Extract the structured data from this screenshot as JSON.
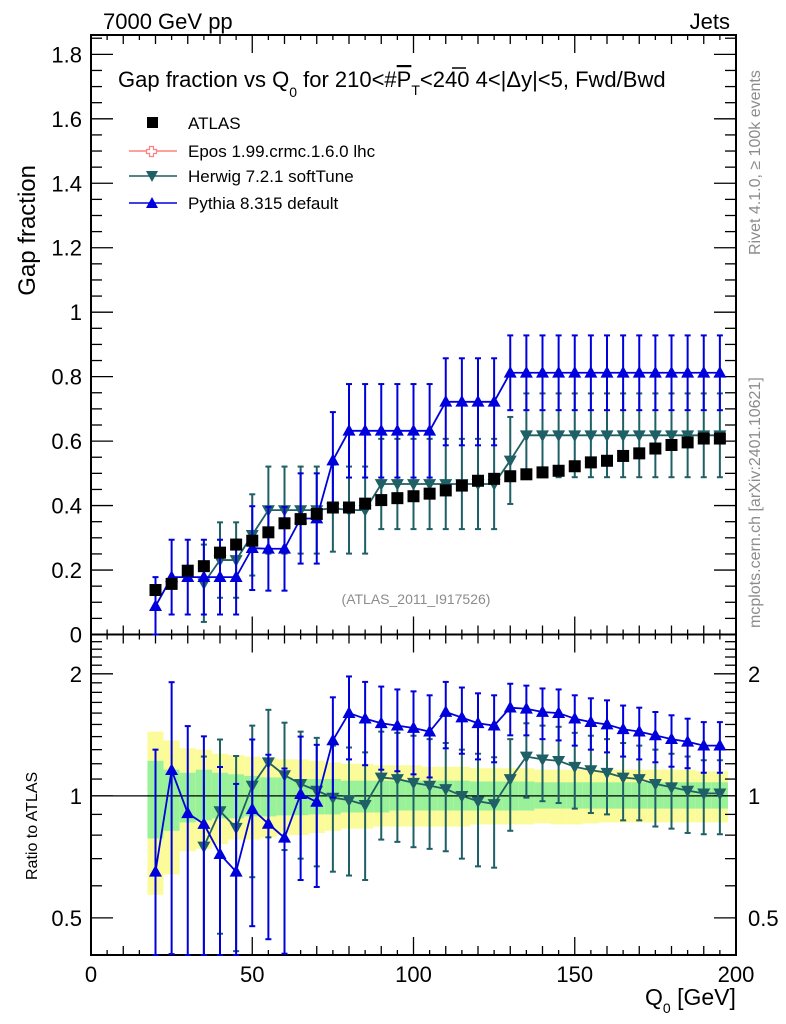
{
  "header": {
    "left": "7000 GeV pp",
    "right": "Jets"
  },
  "side_notes": {
    "rivet": "Rivet 4.1.0, ≥ 100k events",
    "mcplots": "mcplots.cern.ch [arXiv:2401.10621]"
  },
  "analysis_label": "(ATLAS_2011_I917526)",
  "colors": {
    "atlas": "#000000",
    "epos": "#ff8080",
    "herwig": "#1f5f66",
    "pythia": "#0000dd",
    "band_inner": "#99f299",
    "band_outer": "#fbfb99"
  },
  "chart_data": [
    {
      "type": "scatter",
      "panel": "main",
      "title": "Gap fraction vs Q_0 for 210<#P_T<240  4<|Δy|<5, Fwd/Bwd",
      "title_parts": {
        "a": "Gap fraction vs Q",
        "sub": "0",
        "b": " for 210<#",
        "p": "P",
        "psub": "T",
        "c": "<240  4<|Δy|<5, Fwd/Bwd"
      },
      "xlabel": "Q_0 [GeV]",
      "ylabel": "Gap fraction",
      "xlim": [
        0,
        200
      ],
      "ylim": [
        0,
        1.86
      ],
      "yticks": [
        0,
        0.2,
        0.4,
        0.6,
        0.8,
        1,
        1.2,
        1.4,
        1.6,
        1.8
      ],
      "ytick_labels": [
        "0",
        "0.2",
        "0.4",
        "0.6",
        "0.8",
        "1",
        "1.2",
        "1.4",
        "1.6",
        "1.8"
      ],
      "legend_position": "top-left",
      "x": [
        20,
        25,
        30,
        35,
        40,
        45,
        50,
        55,
        60,
        65,
        70,
        75,
        80,
        85,
        90,
        95,
        100,
        105,
        110,
        115,
        120,
        125,
        130,
        135,
        140,
        145,
        150,
        155,
        160,
        165,
        170,
        175,
        180,
        185,
        190,
        195
      ],
      "series": [
        {
          "name": "ATLAS",
          "marker": "square",
          "values": [
            0.138,
            0.157,
            0.198,
            0.212,
            0.254,
            0.279,
            0.291,
            0.317,
            0.345,
            0.358,
            0.374,
            0.394,
            0.394,
            0.406,
            0.417,
            0.423,
            0.429,
            0.437,
            0.447,
            0.462,
            0.477,
            0.483,
            0.491,
            0.497,
            0.503,
            0.508,
            0.522,
            0.534,
            0.539,
            0.554,
            0.562,
            0.577,
            0.588,
            0.596,
            0.608,
            0.608
          ]
        },
        {
          "name": "Epos 1.99.crmc.1.6.0 lhc",
          "marker": "open-cross",
          "values": []
        },
        {
          "name": "Herwig 7.2.1 softTune",
          "marker": "triangle-down",
          "x_start": 35,
          "values": [
            null,
            null,
            null,
            0.159,
            0.231,
            0.231,
            0.309,
            0.386,
            0.386,
            0.386,
            0.386,
            0.392,
            0.386,
            0.386,
            0.467,
            0.467,
            0.467,
            0.467,
            0.467,
            0.467,
            0.467,
            0.467,
            0.54,
            0.618,
            0.618,
            0.618,
            0.618,
            0.618,
            0.618,
            0.618,
            0.618,
            0.618,
            0.618,
            0.618,
            0.618,
            0.618
          ],
          "errors": [
            null,
            null,
            null,
            0.12,
            0.117,
            0.117,
            0.126,
            0.135,
            0.135,
            0.135,
            0.135,
            0.135,
            0.135,
            0.135,
            0.14,
            0.14,
            0.14,
            0.14,
            0.14,
            0.14,
            0.14,
            0.14,
            0.135,
            0.13,
            0.13,
            0.13,
            0.13,
            0.13,
            0.13,
            0.13,
            0.13,
            0.13,
            0.13,
            0.13,
            0.13,
            0.13
          ]
        },
        {
          "name": "Pythia 8.315 default",
          "marker": "triangle-up",
          "values": [
            0.088,
            0.178,
            0.178,
            0.178,
            0.178,
            0.178,
            0.268,
            0.266,
            0.266,
            0.36,
            0.36,
            0.54,
            0.632,
            0.632,
            0.632,
            0.632,
            0.632,
            0.632,
            0.722,
            0.722,
            0.722,
            0.722,
            0.812,
            0.812,
            0.812,
            0.812,
            0.812,
            0.812,
            0.812,
            0.812,
            0.812,
            0.812,
            0.812,
            0.812,
            0.812,
            0.812
          ],
          "errors": [
            0.09,
            0.116,
            0.116,
            0.116,
            0.116,
            0.116,
            0.13,
            0.13,
            0.13,
            0.14,
            0.14,
            0.15,
            0.145,
            0.145,
            0.145,
            0.145,
            0.145,
            0.145,
            0.135,
            0.135,
            0.135,
            0.135,
            0.116,
            0.116,
            0.116,
            0.116,
            0.116,
            0.116,
            0.116,
            0.116,
            0.116,
            0.116,
            0.116,
            0.116,
            0.116,
            0.116
          ]
        }
      ]
    },
    {
      "type": "scatter",
      "panel": "ratio",
      "ylabel": "Ratio to ATLAS",
      "yscale": "log",
      "xlim": [
        0,
        200
      ],
      "ylim": [
        0.405,
        2.5
      ],
      "yticks": [
        0.5,
        1,
        2
      ],
      "ytick_labels": [
        "0.5",
        "1",
        "2"
      ],
      "xticks": [
        0,
        50,
        100,
        150,
        200
      ],
      "xtick_labels": [
        "0",
        "50",
        "100",
        "150",
        "200"
      ],
      "x": [
        20,
        25,
        30,
        35,
        40,
        45,
        50,
        55,
        60,
        65,
        70,
        75,
        80,
        85,
        90,
        95,
        100,
        105,
        110,
        115,
        120,
        125,
        130,
        135,
        140,
        145,
        150,
        155,
        160,
        165,
        170,
        175,
        180,
        185,
        190,
        195
      ],
      "band_inner": [
        [
          0.785,
          1.22
        ],
        [
          0.82,
          1.16
        ],
        [
          0.86,
          1.14
        ],
        [
          0.87,
          1.16
        ],
        [
          0.88,
          1.14
        ],
        [
          0.88,
          1.13
        ],
        [
          0.89,
          1.12
        ],
        [
          0.89,
          1.11
        ],
        [
          0.895,
          1.11
        ],
        [
          0.896,
          1.1
        ],
        [
          0.9,
          1.1
        ],
        [
          0.9,
          1.1
        ],
        [
          0.91,
          1.09
        ],
        [
          0.91,
          1.09
        ],
        [
          0.91,
          1.09
        ],
        [
          0.92,
          1.09
        ],
        [
          0.92,
          1.09
        ],
        [
          0.92,
          1.09
        ],
        [
          0.92,
          1.09
        ],
        [
          0.92,
          1.09
        ],
        [
          0.92,
          1.085
        ],
        [
          0.92,
          1.085
        ],
        [
          0.92,
          1.085
        ],
        [
          0.92,
          1.085
        ],
        [
          0.93,
          1.08
        ],
        [
          0.93,
          1.08
        ],
        [
          0.93,
          1.08
        ],
        [
          0.93,
          1.08
        ],
        [
          0.93,
          1.08
        ],
        [
          0.93,
          1.08
        ],
        [
          0.93,
          1.08
        ],
        [
          0.93,
          1.08
        ],
        [
          0.93,
          1.08
        ],
        [
          0.93,
          1.08
        ],
        [
          0.93,
          1.08
        ],
        [
          0.93,
          1.08
        ]
      ],
      "band_outer": [
        [
          0.57,
          1.44
        ],
        [
          0.64,
          1.37
        ],
        [
          0.73,
          1.31
        ],
        [
          0.74,
          1.3
        ],
        [
          0.76,
          1.27
        ],
        [
          0.78,
          1.26
        ],
        [
          0.78,
          1.25
        ],
        [
          0.79,
          1.24
        ],
        [
          0.8,
          1.23
        ],
        [
          0.8,
          1.23
        ],
        [
          0.81,
          1.22
        ],
        [
          0.82,
          1.21
        ],
        [
          0.83,
          1.2
        ],
        [
          0.83,
          1.2
        ],
        [
          0.84,
          1.19
        ],
        [
          0.84,
          1.19
        ],
        [
          0.84,
          1.19
        ],
        [
          0.84,
          1.18
        ],
        [
          0.84,
          1.18
        ],
        [
          0.84,
          1.18
        ],
        [
          0.85,
          1.17
        ],
        [
          0.85,
          1.17
        ],
        [
          0.85,
          1.17
        ],
        [
          0.85,
          1.17
        ],
        [
          0.855,
          1.16
        ],
        [
          0.85,
          1.16
        ],
        [
          0.85,
          1.16
        ],
        [
          0.855,
          1.16
        ],
        [
          0.86,
          1.16
        ],
        [
          0.86,
          1.16
        ],
        [
          0.86,
          1.16
        ],
        [
          0.86,
          1.16
        ],
        [
          0.86,
          1.16
        ],
        [
          0.86,
          1.16
        ],
        [
          0.86,
          1.15
        ],
        [
          0.86,
          1.15
        ]
      ],
      "series": [
        {
          "name": "Herwig 7.2.1 softTune",
          "values": [
            null,
            null,
            null,
            0.75,
            0.917,
            0.834,
            1.06,
            1.21,
            1.125,
            1.07,
            1.03,
            0.99,
            0.976,
            0.95,
            1.11,
            1.1,
            1.077,
            1.06,
            1.04,
            1.0,
            0.97,
            0.955,
            1.1,
            1.25,
            1.23,
            1.22,
            1.18,
            1.157,
            1.14,
            1.11,
            1.1,
            1.07,
            1.05,
            1.03,
            1.014,
            1.014
          ],
          "errors": [
            null,
            null,
            null,
            0.5,
            0.46,
            0.42,
            0.43,
            0.42,
            0.39,
            0.37,
            0.36,
            0.34,
            0.34,
            0.33,
            0.33,
            0.33,
            0.33,
            0.32,
            0.31,
            0.3,
            0.3,
            0.29,
            0.28,
            0.26,
            0.26,
            0.26,
            0.25,
            0.25,
            0.24,
            0.24,
            0.23,
            0.23,
            0.22,
            0.22,
            0.21,
            0.21
          ]
        },
        {
          "name": "Pythia 8.315 default",
          "values": [
            0.65,
            1.157,
            0.906,
            0.852,
            0.718,
            0.65,
            0.927,
            0.853,
            0.788,
            1.01,
            0.966,
            1.37,
            1.6,
            1.55,
            1.51,
            1.49,
            1.47,
            1.44,
            1.61,
            1.56,
            1.51,
            1.49,
            1.65,
            1.64,
            1.61,
            1.6,
            1.55,
            1.52,
            1.5,
            1.46,
            1.44,
            1.41,
            1.38,
            1.36,
            1.33,
            1.33
          ],
          "errors": [
            0.65,
            0.75,
            0.58,
            0.55,
            0.46,
            0.42,
            0.45,
            0.41,
            0.38,
            0.39,
            0.37,
            0.38,
            0.37,
            0.36,
            0.35,
            0.34,
            0.34,
            0.33,
            0.3,
            0.29,
            0.28,
            0.28,
            0.24,
            0.23,
            0.23,
            0.23,
            0.22,
            0.22,
            0.22,
            0.21,
            0.21,
            0.2,
            0.2,
            0.19,
            0.19,
            0.19
          ]
        }
      ]
    }
  ]
}
